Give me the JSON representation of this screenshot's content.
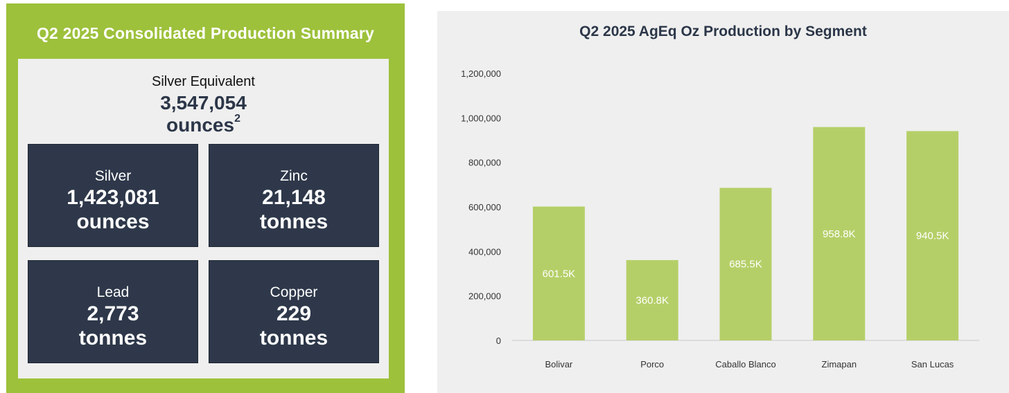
{
  "summary": {
    "title": "Q2 2025 Consolidated Production Summary",
    "equivalent": {
      "label": "Silver Equivalent",
      "value": "3,547,054",
      "unit": "ounces",
      "superscript": "2"
    },
    "metals": [
      {
        "name": "Silver",
        "value": "1,423,081",
        "unit": "ounces"
      },
      {
        "name": "Zinc",
        "value": "21,148",
        "unit": "tonnes"
      },
      {
        "name": "Lead",
        "value": "2,773",
        "unit": "tonnes"
      },
      {
        "name": "Copper",
        "value": "229",
        "unit": "tonnes"
      }
    ]
  },
  "colors": {
    "green": "#9dc13b",
    "bar": "#b5cf68",
    "navy": "#2e384a",
    "panel": "#efefef"
  },
  "chart_data": {
    "type": "bar",
    "title": "Q2 2025 AgEq Oz Production by Segment",
    "categories": [
      "Bolivar",
      "Porco",
      "Caballo Blanco",
      "Zimapan",
      "San Lucas"
    ],
    "values": [
      601500,
      360800,
      685500,
      958800,
      940500
    ],
    "data_labels": [
      "601.5K",
      "360.8K",
      "685.5K",
      "958.8K",
      "940.5K"
    ],
    "yticks": [
      "0",
      "200,000",
      "400,000",
      "600,000",
      "800,000",
      "1,000,000",
      "1,200,000"
    ],
    "ylim": [
      0,
      1200000
    ],
    "xlabel": "",
    "ylabel": "",
    "grid": false
  }
}
